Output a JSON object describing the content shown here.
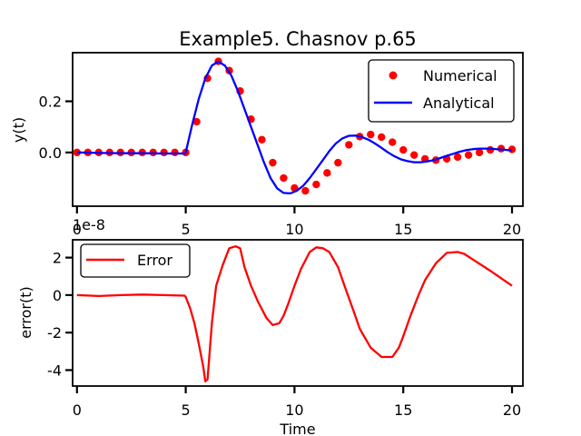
{
  "title": "Example5. Chasnov p.65",
  "chart_data": [
    {
      "type": "line",
      "panel": "top",
      "ylabel": "y(t)",
      "xlabel": "",
      "offset_text": "1e-8",
      "xlim": [
        -0.2,
        20.5
      ],
      "ylim": [
        -0.21,
        0.39
      ],
      "xticks": [
        0,
        5,
        10,
        15,
        20
      ],
      "xtick_labels": [
        "0",
        "5",
        "10",
        "15",
        "20"
      ],
      "yticks": [
        0.0,
        0.2
      ],
      "ytick_labels": [
        "0.0",
        "0.2"
      ],
      "legend": {
        "placement": "upper right",
        "entries": [
          "Numerical",
          "Analytical"
        ]
      },
      "series": [
        {
          "name": "Numerical",
          "style": "markers",
          "color": "#ff0000",
          "x": [
            0,
            0.5,
            1,
            1.5,
            2,
            2.5,
            3,
            3.5,
            4,
            4.5,
            5,
            5.5,
            6,
            6.5,
            7,
            7.5,
            8,
            8.5,
            9,
            9.5,
            10,
            10.5,
            11,
            11.5,
            12,
            12.5,
            13,
            13.5,
            14,
            14.5,
            15,
            15.5,
            16,
            16.5,
            17,
            17.5,
            18,
            18.5,
            19,
            19.5,
            20
          ],
          "values": [
            0.0,
            0.0,
            0.0,
            0.0,
            0.0,
            0.0,
            0.0,
            0.0,
            0.0,
            0.0,
            0.0,
            0.12,
            0.29,
            0.356,
            0.32,
            0.24,
            0.13,
            0.05,
            -0.04,
            -0.1,
            -0.139,
            -0.15,
            -0.125,
            -0.08,
            -0.04,
            0.03,
            0.062,
            0.07,
            0.06,
            0.04,
            0.01,
            -0.01,
            -0.025,
            -0.03,
            -0.025,
            -0.018,
            -0.01,
            0.0,
            0.01,
            0.015,
            0.012
          ]
        },
        {
          "name": "Analytical",
          "style": "line",
          "color": "#0000ff",
          "x": [
            0,
            1,
            2,
            3,
            4,
            4.95,
            5.0,
            5.3,
            5.6,
            5.9,
            6.2,
            6.5,
            6.8,
            7.1,
            7.4,
            7.7,
            8.0,
            8.3,
            8.6,
            8.9,
            9.2,
            9.5,
            9.8,
            10.1,
            10.4,
            10.7,
            11.0,
            11.3,
            11.6,
            11.9,
            12.2,
            12.5,
            12.8,
            13.1,
            13.4,
            13.7,
            14.0,
            14.3,
            14.6,
            14.9,
            15.2,
            15.5,
            15.8,
            16.1,
            16.4,
            16.7,
            17.0,
            17.3,
            17.6,
            17.9,
            18.2,
            18.5,
            18.8,
            19.1,
            19.4,
            19.7,
            20.0
          ],
          "values": [
            0.0,
            -0.002,
            -0.003,
            -0.003,
            -0.004,
            -0.004,
            0.0,
            0.11,
            0.21,
            0.29,
            0.34,
            0.355,
            0.34,
            0.3,
            0.24,
            0.17,
            0.1,
            0.03,
            -0.04,
            -0.1,
            -0.14,
            -0.158,
            -0.16,
            -0.15,
            -0.13,
            -0.1,
            -0.065,
            -0.03,
            0.005,
            0.035,
            0.055,
            0.065,
            0.066,
            0.06,
            0.05,
            0.035,
            0.018,
            0.0,
            -0.015,
            -0.027,
            -0.034,
            -0.038,
            -0.038,
            -0.035,
            -0.03,
            -0.022,
            -0.013,
            -0.005,
            0.003,
            0.009,
            0.013,
            0.015,
            0.015,
            0.014,
            0.012,
            0.01,
            0.008
          ]
        }
      ]
    },
    {
      "type": "line",
      "panel": "bottom",
      "ylabel": "error(t)",
      "xlabel": "Time",
      "xlim": [
        -0.2,
        20.5
      ],
      "ylim": [
        -4.85,
        2.95
      ],
      "xticks": [
        0,
        5,
        10,
        15,
        20
      ],
      "xtick_labels": [
        "0",
        "5",
        "10",
        "15",
        "20"
      ],
      "yticks": [
        -4,
        -2,
        0,
        2
      ],
      "ytick_labels": [
        "-4",
        "-2",
        "0",
        "2"
      ],
      "legend": {
        "placement": "upper left",
        "entries": [
          "Error"
        ]
      },
      "series": [
        {
          "name": "Error",
          "style": "line",
          "color": "#ff0000",
          "x": [
            0,
            1,
            2,
            3,
            4,
            4.95,
            5.0,
            5.2,
            5.4,
            5.6,
            5.8,
            5.9,
            6.0,
            6.2,
            6.4,
            6.7,
            7.0,
            7.3,
            7.5,
            7.7,
            8.0,
            8.3,
            8.7,
            9.0,
            9.3,
            9.5,
            9.7,
            10.0,
            10.3,
            10.7,
            11.0,
            11.3,
            11.6,
            12.0,
            12.3,
            12.7,
            13.0,
            13.5,
            14.0,
            14.5,
            14.8,
            15.0,
            15.3,
            15.7,
            16.0,
            16.5,
            17.0,
            17.5,
            17.8,
            18.2,
            18.6,
            19.0,
            19.5,
            20.0
          ],
          "values": [
            0.0,
            -0.05,
            0.0,
            0.03,
            0.0,
            -0.03,
            -0.1,
            -0.7,
            -1.5,
            -2.6,
            -3.8,
            -4.6,
            -4.5,
            -1.5,
            0.5,
            1.6,
            2.5,
            2.6,
            2.5,
            1.5,
            0.5,
            -0.3,
            -1.2,
            -1.6,
            -1.5,
            -1.1,
            -0.5,
            0.5,
            1.4,
            2.3,
            2.55,
            2.5,
            2.3,
            1.5,
            0.5,
            -0.8,
            -1.8,
            -2.8,
            -3.3,
            -3.3,
            -2.8,
            -2.2,
            -1.2,
            0.0,
            0.8,
            1.7,
            2.25,
            2.3,
            2.2,
            1.9,
            1.6,
            1.3,
            0.9,
            0.5
          ]
        }
      ]
    }
  ]
}
